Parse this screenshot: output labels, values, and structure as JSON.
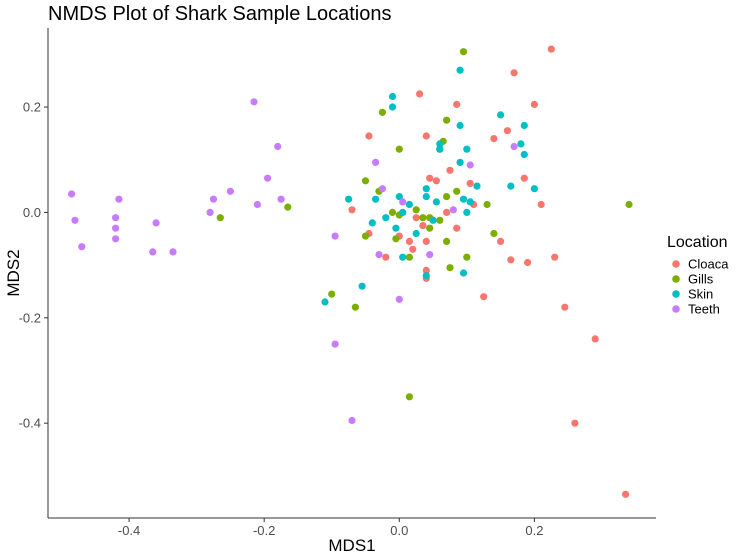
{
  "chart_data": {
    "type": "scatter",
    "title": "NMDS Plot of Shark Sample Locations",
    "xlabel": "MDS1",
    "ylabel": "MDS2",
    "xlim": [
      -0.52,
      0.38
    ],
    "ylim": [
      -0.58,
      0.35
    ],
    "xticks": [
      -0.4,
      -0.2,
      0.0,
      0.2
    ],
    "xtick_labels": [
      "-0.4",
      "-0.2",
      "0.0",
      "0.2"
    ],
    "yticks": [
      -0.4,
      -0.2,
      0.0,
      0.2
    ],
    "ytick_labels": [
      "-0.4",
      "-0.2",
      "0.0",
      "0.2"
    ],
    "grid": false,
    "legend": {
      "title": "Location",
      "placement": "right"
    },
    "series": [
      {
        "name": "Cloaca",
        "color": "#F8766D",
        "points": [
          [
            0.225,
            0.31
          ],
          [
            0.17,
            0.265
          ],
          [
            0.2,
            0.205
          ],
          [
            0.03,
            0.225
          ],
          [
            0.085,
            0.205
          ],
          [
            0.04,
            0.145
          ],
          [
            0.14,
            0.14
          ],
          [
            0.16,
            0.155
          ],
          [
            -0.045,
            0.145
          ],
          [
            0.21,
            0.015
          ],
          [
            0.185,
            0.065
          ],
          [
            0.045,
            0.065
          ],
          [
            0.055,
            0.06
          ],
          [
            0.075,
            0.08
          ],
          [
            0.105,
            0.055
          ],
          [
            0.11,
            0.015
          ],
          [
            -0.07,
            0.005
          ],
          [
            0.025,
            -0.01
          ],
          [
            0.07,
            0.0
          ],
          [
            0.035,
            -0.025
          ],
          [
            -0.045,
            -0.04
          ],
          [
            0.0,
            -0.045
          ],
          [
            0.015,
            -0.055
          ],
          [
            0.085,
            -0.03
          ],
          [
            0.04,
            -0.055
          ],
          [
            0.15,
            -0.055
          ],
          [
            -0.02,
            -0.085
          ],
          [
            0.02,
            -0.07
          ],
          [
            0.04,
            -0.11
          ],
          [
            0.165,
            -0.09
          ],
          [
            0.19,
            -0.095
          ],
          [
            0.23,
            -0.085
          ],
          [
            0.04,
            -0.125
          ],
          [
            0.125,
            -0.16
          ],
          [
            0.245,
            -0.18
          ],
          [
            0.29,
            -0.24
          ],
          [
            0.26,
            -0.4
          ],
          [
            0.335,
            -0.535
          ]
        ]
      },
      {
        "name": "Gills",
        "color": "#7CAE00",
        "points": [
          [
            0.095,
            0.305
          ],
          [
            -0.025,
            0.19
          ],
          [
            0.07,
            0.175
          ],
          [
            0.065,
            0.135
          ],
          [
            0.0,
            0.12
          ],
          [
            0.06,
            0.12
          ],
          [
            -0.05,
            0.06
          ],
          [
            0.34,
            0.015
          ],
          [
            -0.03,
            0.04
          ],
          [
            0.07,
            0.03
          ],
          [
            0.085,
            0.04
          ],
          [
            0.13,
            0.015
          ],
          [
            -0.265,
            -0.01
          ],
          [
            -0.165,
            0.01
          ],
          [
            0.0,
            -0.005
          ],
          [
            0.035,
            -0.01
          ],
          [
            0.045,
            -0.01
          ],
          [
            0.025,
            0.005
          ],
          [
            -0.01,
            0.0
          ],
          [
            0.06,
            -0.015
          ],
          [
            -0.05,
            -0.045
          ],
          [
            -0.005,
            -0.05
          ],
          [
            0.045,
            -0.03
          ],
          [
            0.015,
            -0.085
          ],
          [
            0.07,
            -0.055
          ],
          [
            0.14,
            -0.04
          ],
          [
            0.1,
            -0.085
          ],
          [
            0.075,
            -0.105
          ],
          [
            -0.1,
            -0.155
          ],
          [
            -0.065,
            -0.18
          ],
          [
            0.015,
            -0.35
          ]
        ]
      },
      {
        "name": "Skin",
        "color": "#00BFC4",
        "points": [
          [
            0.09,
            0.27
          ],
          [
            -0.01,
            0.22
          ],
          [
            -0.01,
            0.2
          ],
          [
            0.15,
            0.185
          ],
          [
            0.185,
            0.165
          ],
          [
            0.09,
            0.165
          ],
          [
            0.06,
            0.13
          ],
          [
            0.06,
            0.12
          ],
          [
            0.09,
            0.095
          ],
          [
            0.1,
            0.12
          ],
          [
            0.18,
            0.13
          ],
          [
            0.185,
            0.11
          ],
          [
            0.165,
            0.05
          ],
          [
            0.2,
            0.045
          ],
          [
            0.04,
            0.045
          ],
          [
            0.115,
            0.05
          ],
          [
            0.0,
            0.03
          ],
          [
            0.04,
            0.03
          ],
          [
            0.095,
            0.025
          ],
          [
            0.105,
            0.02
          ],
          [
            -0.075,
            0.025
          ],
          [
            -0.035,
            0.025
          ],
          [
            0.015,
            0.015
          ],
          [
            0.055,
            0.02
          ],
          [
            0.005,
            0.0
          ],
          [
            0.1,
            0.0
          ],
          [
            -0.02,
            -0.01
          ],
          [
            -0.04,
            -0.02
          ],
          [
            0.05,
            -0.015
          ],
          [
            -0.005,
            -0.03
          ],
          [
            0.025,
            -0.04
          ],
          [
            0.005,
            -0.085
          ],
          [
            0.04,
            -0.12
          ],
          [
            -0.055,
            -0.14
          ],
          [
            -0.11,
            -0.17
          ],
          [
            0.095,
            -0.115
          ]
        ]
      },
      {
        "name": "Teeth",
        "color": "#C77CFF",
        "points": [
          [
            -0.215,
            0.21
          ],
          [
            -0.18,
            0.125
          ],
          [
            -0.035,
            0.095
          ],
          [
            0.105,
            0.09
          ],
          [
            -0.195,
            0.065
          ],
          [
            -0.485,
            0.035
          ],
          [
            -0.25,
            0.04
          ],
          [
            -0.415,
            0.025
          ],
          [
            -0.275,
            0.025
          ],
          [
            -0.175,
            0.025
          ],
          [
            -0.025,
            0.045
          ],
          [
            -0.21,
            0.015
          ],
          [
            -0.28,
            0.0
          ],
          [
            -0.48,
            -0.015
          ],
          [
            -0.42,
            -0.01
          ],
          [
            -0.36,
            -0.02
          ],
          [
            0.005,
            0.02
          ],
          [
            0.08,
            0.005
          ],
          [
            0.17,
            0.125
          ],
          [
            -0.42,
            -0.03
          ],
          [
            -0.42,
            -0.05
          ],
          [
            -0.47,
            -0.065
          ],
          [
            -0.365,
            -0.075
          ],
          [
            -0.335,
            -0.075
          ],
          [
            -0.095,
            -0.045
          ],
          [
            -0.03,
            -0.08
          ],
          [
            0.045,
            -0.08
          ],
          [
            0.0,
            -0.165
          ],
          [
            -0.095,
            -0.25
          ],
          [
            -0.07,
            -0.395
          ]
        ]
      }
    ]
  }
}
